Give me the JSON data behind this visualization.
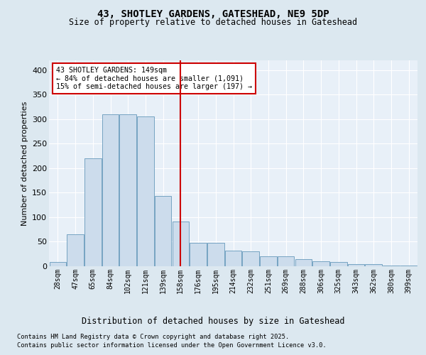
{
  "title1": "43, SHOTLEY GARDENS, GATESHEAD, NE9 5DP",
  "title2": "Size of property relative to detached houses in Gateshead",
  "xlabel": "Distribution of detached houses by size in Gateshead",
  "ylabel": "Number of detached properties",
  "annotation_line1": "43 SHOTLEY GARDENS: 149sqm",
  "annotation_line2": "← 84% of detached houses are smaller (1,091)",
  "annotation_line3": "15% of semi-detached houses are larger (197) →",
  "footer1": "Contains HM Land Registry data © Crown copyright and database right 2025.",
  "footer2": "Contains public sector information licensed under the Open Government Licence v3.0.",
  "bar_color": "#ccdcec",
  "bar_edge_color": "#6699bb",
  "red_line_color": "#cc0000",
  "annotation_box_color": "#cc0000",
  "background_color": "#dce8f0",
  "plot_bg_color": "#e8f0f8",
  "grid_color": "#ffffff",
  "bins": [
    "28sqm",
    "47sqm",
    "65sqm",
    "84sqm",
    "102sqm",
    "121sqm",
    "139sqm",
    "158sqm",
    "176sqm",
    "195sqm",
    "214sqm",
    "232sqm",
    "251sqm",
    "269sqm",
    "288sqm",
    "306sqm",
    "325sqm",
    "343sqm",
    "362sqm",
    "380sqm",
    "399sqm"
  ],
  "values": [
    8,
    65,
    220,
    310,
    310,
    305,
    143,
    91,
    48,
    48,
    32,
    31,
    21,
    21,
    14,
    10,
    9,
    5,
    5,
    2,
    1
  ],
  "red_line_bin_index": 7,
  "ylim": [
    0,
    420
  ],
  "yticks": [
    0,
    50,
    100,
    150,
    200,
    250,
    300,
    350,
    400
  ]
}
